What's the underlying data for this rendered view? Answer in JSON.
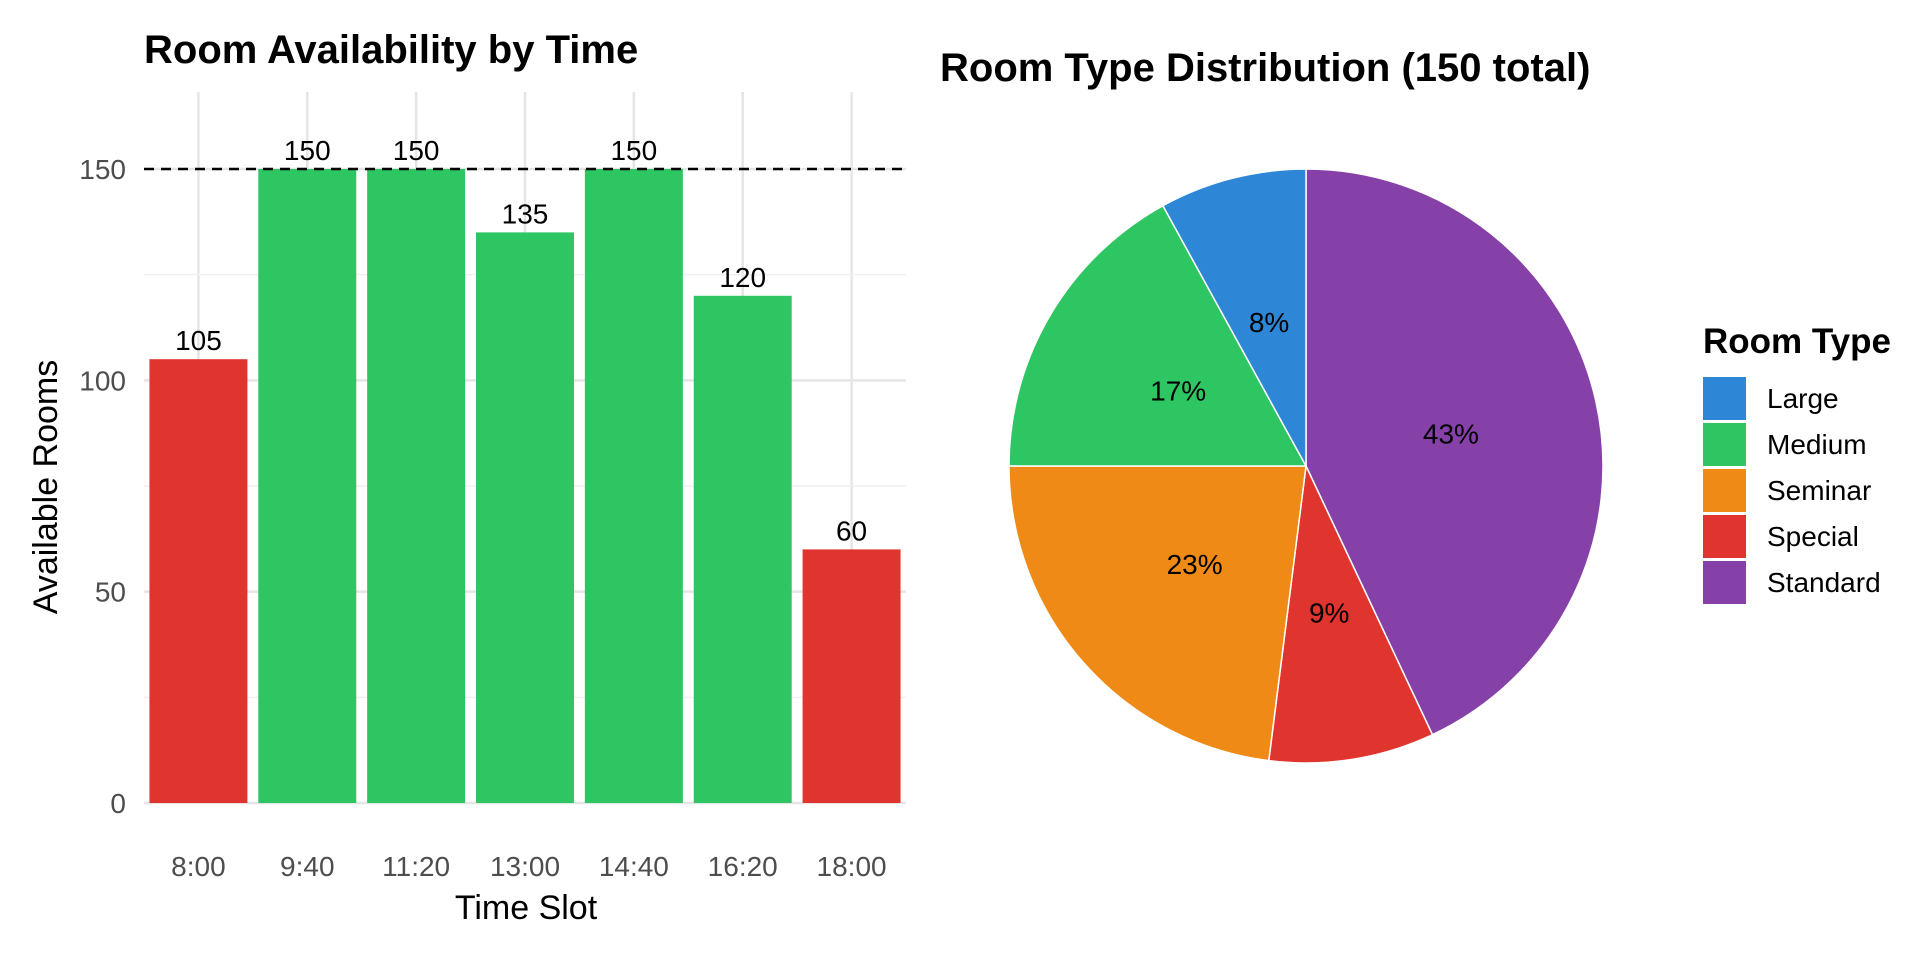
{
  "chart_data": [
    {
      "type": "bar",
      "title": "Room Availability by Time",
      "xlabel": "Time Slot",
      "ylabel": "Available Rooms",
      "categories": [
        "8:00",
        "9:40",
        "11:20",
        "13:00",
        "14:40",
        "16:20",
        "18:00"
      ],
      "values": [
        105,
        150,
        150,
        135,
        150,
        120,
        60
      ],
      "data_labels": [
        "105",
        "150",
        "150",
        "135",
        "150",
        "120",
        "60"
      ],
      "bar_colors": [
        "#E0352F",
        "#2EC563",
        "#2EC563",
        "#2EC563",
        "#2EC563",
        "#2EC563",
        "#E0352F"
      ],
      "ylim": [
        0,
        165
      ],
      "yticks": [
        0,
        50,
        100,
        150
      ],
      "ytick_labels": [
        "0",
        "50",
        "100",
        "150"
      ],
      "reference_line": 150,
      "grid": true
    },
    {
      "type": "pie",
      "title": "Room Type Distribution (150 total)",
      "legend_title": "Room Type",
      "legend_position": "right",
      "slices": [
        {
          "label": "Large",
          "value": 8,
          "text": "8%",
          "color": "#2D87D6"
        },
        {
          "label": "Medium",
          "value": 17,
          "text": "17%",
          "color": "#2EC563"
        },
        {
          "label": "Seminar",
          "value": 23,
          "text": "23%",
          "color": "#EE8A15"
        },
        {
          "label": "Special",
          "value": 9,
          "text": "9%",
          "color": "#E0352F"
        },
        {
          "label": "Standard",
          "value": 43,
          "text": "43%",
          "color": "#8641A8"
        }
      ]
    }
  ]
}
